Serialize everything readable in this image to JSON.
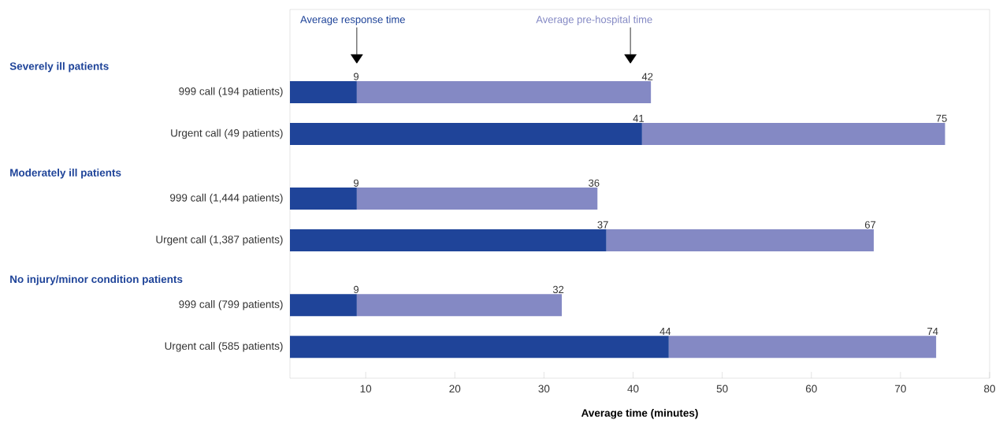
{
  "chart_data": {
    "type": "bar",
    "orientation": "horizontal",
    "stacked": true,
    "xlabel": "Average time (minutes)",
    "categories": [
      "999 call (194 patients)",
      "Urgent call (49 patients)",
      "999 call (1,444 patients)",
      "Urgent call (1,387 patients)",
      "999 call (799 patients)",
      "Urgent call (585 patients)"
    ],
    "annotations": [
      "Severely ill patients",
      "Moderately ill patients",
      "No injury/minor condition patients",
      {
        "text": "42",
        "x": 42,
        "y": "999 call (194 patients)"
      },
      {
        "text": "75",
        "x": 75,
        "y": "Urgent call (49 patients)"
      },
      {
        "text": "36",
        "x": 36,
        "y": "999 call (1,444 patients)"
      },
      {
        "text": "67",
        "x": 67,
        "y": "Urgent call (1,387 patients)"
      },
      {
        "text": "32",
        "x": 32,
        "y": "999 call (799 patients)"
      },
      {
        "text": "74",
        "x": 74,
        "y": "Urgent call (585 patients)"
      }
    ],
    "series": [
      {
        "name": "Average response time",
        "color": "#1f4499",
        "values": [
          9,
          41,
          9,
          37,
          9,
          44
        ],
        "value_labels": [
          "9",
          "41",
          "9",
          "37",
          "9",
          "44"
        ]
      },
      {
        "name": "Average pre-hospital time",
        "color": "#8489c4",
        "values": [
          33,
          34,
          27,
          30,
          23,
          30
        ]
      }
    ],
    "xlim": [
      1.5,
      80
    ],
    "xticks": [
      10,
      20,
      30,
      40,
      50,
      60,
      70,
      80
    ]
  }
}
